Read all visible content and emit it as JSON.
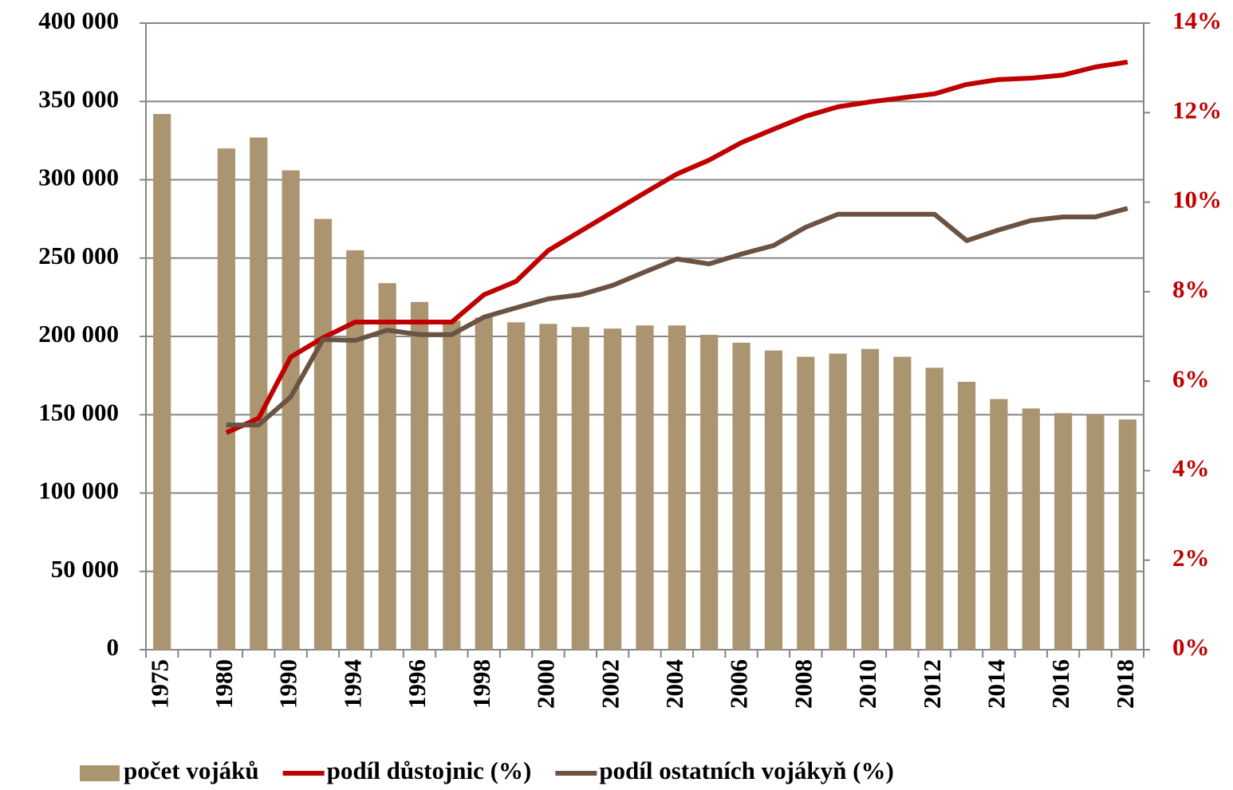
{
  "chart_data": {
    "type": "bar",
    "categories": [
      "1975",
      null,
      "1980",
      null,
      "1990",
      null,
      "1994",
      null,
      "1996",
      null,
      "1998",
      null,
      "2000",
      null,
      "2002",
      null,
      "2004",
      null,
      "2006",
      null,
      "2008",
      null,
      "2010",
      null,
      "2012",
      null,
      "2014",
      null,
      "2016",
      null,
      "2018"
    ],
    "series": [
      {
        "name": "počet vojáků",
        "type": "bar",
        "color": "#ab9470",
        "values": [
          342000,
          null,
          320000,
          327000,
          306000,
          275000,
          255000,
          234000,
          222000,
          210000,
          212000,
          209000,
          208000,
          206000,
          205000,
          207000,
          207000,
          201000,
          196000,
          191000,
          187000,
          189000,
          192000,
          187000,
          180000,
          171000,
          160000,
          154000,
          151000,
          150000,
          147000
        ]
      },
      {
        "name": "podíl důstojnic (%)",
        "type": "line",
        "axis": "y2",
        "color": "#c00000",
        "values": [
          null,
          null,
          4.85,
          5.17,
          6.54,
          6.97,
          7.32,
          7.32,
          7.32,
          7.32,
          7.93,
          8.23,
          8.92,
          9.35,
          9.78,
          10.21,
          10.63,
          10.94,
          11.33,
          11.63,
          11.92,
          12.13,
          12.24,
          12.33,
          12.42,
          12.63,
          12.74,
          12.77,
          12.84,
          13.02,
          13.13
        ]
      },
      {
        "name": "podíl ostatních vojákyň (%)",
        "type": "line",
        "axis": "y2",
        "color": "#6b5344",
        "values": [
          null,
          null,
          5.02,
          5.02,
          5.65,
          6.93,
          6.91,
          7.14,
          7.04,
          7.04,
          7.43,
          7.64,
          7.84,
          7.93,
          8.14,
          8.44,
          8.73,
          8.62,
          8.84,
          9.03,
          9.44,
          9.73,
          9.73,
          9.73,
          9.73,
          9.14,
          9.38,
          9.59,
          9.67,
          9.67,
          9.86
        ]
      }
    ],
    "ylim": [
      0,
      400000
    ],
    "yticks": [
      0,
      {
        "value": 50000,
        "label": "50 000"
      },
      {
        "value": 100000,
        "label": "100 000"
      },
      {
        "value": 150000,
        "label": "150 000"
      },
      {
        "value": 200000,
        "label": "200 000"
      },
      {
        "value": 250000,
        "label": "250 000"
      },
      {
        "value": 300000,
        "label": "300 000"
      },
      {
        "value": 350000,
        "label": "350 000"
      },
      {
        "value": 400000,
        "label": "400 000"
      }
    ],
    "y2lim": [
      0,
      14
    ],
    "y2ticks": [
      {
        "value": 0,
        "label": "0%"
      },
      {
        "value": 2,
        "label": "2%"
      },
      {
        "value": 4,
        "label": "4%"
      },
      {
        "value": 6,
        "label": "6%"
      },
      {
        "value": 8,
        "label": "8%"
      },
      {
        "value": 10,
        "label": "10%"
      },
      {
        "value": 12,
        "label": "12%"
      },
      {
        "value": 14,
        "label": "14%"
      }
    ],
    "y2_color": "#c00000",
    "grid": true,
    "legend": "bottom"
  }
}
